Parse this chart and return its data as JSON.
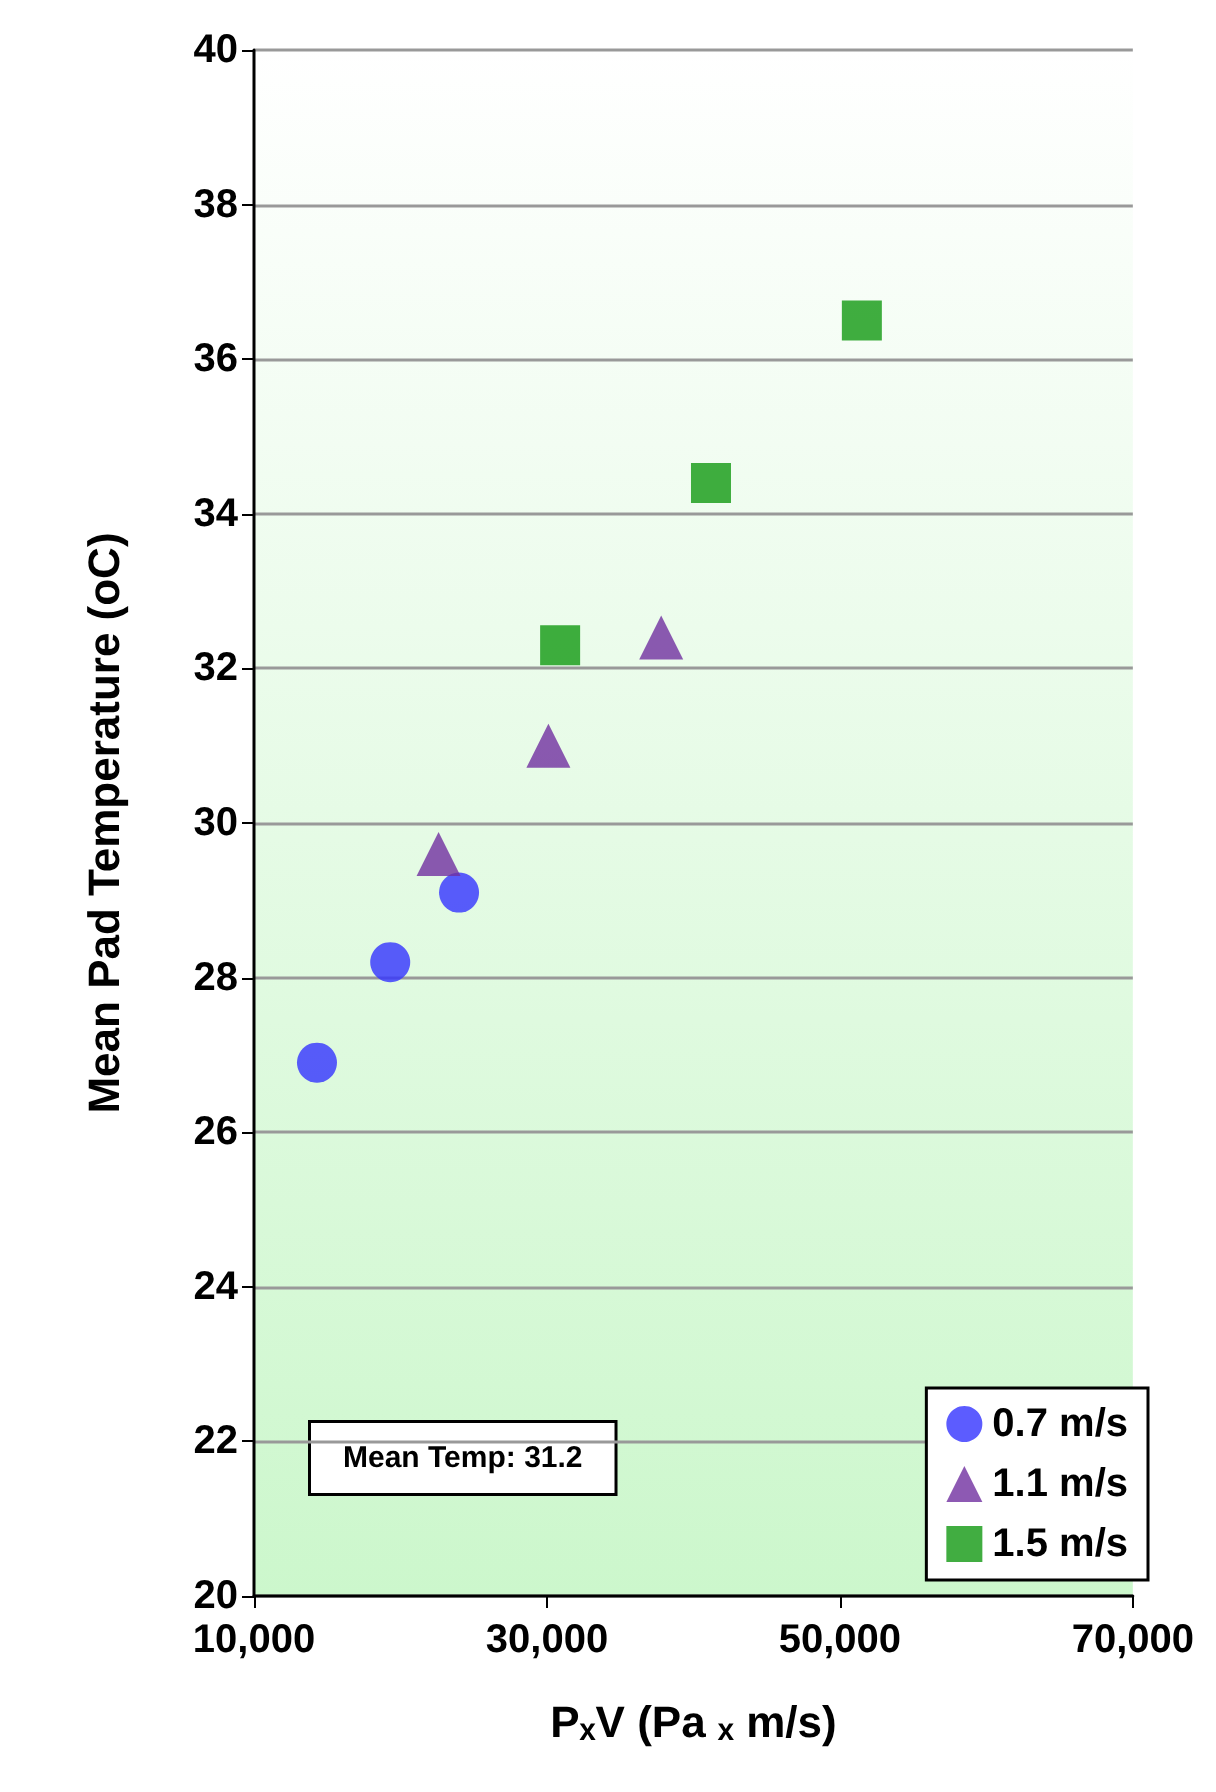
{
  "chart_data": {
    "type": "scatter",
    "xlabel": "PₓV (Pa ₓ m/s)",
    "ylabel": "Mean Pad Temperature (oC)",
    "xlim": [
      10000,
      70000
    ],
    "xticks": [
      {
        "value": 10000,
        "label": "10,000"
      },
      {
        "value": 30000,
        "label": "30,000"
      },
      {
        "value": 50000,
        "label": "50,000"
      },
      {
        "value": 70000,
        "label": "70,000"
      }
    ],
    "ylim": [
      20,
      40
    ],
    "yticks": [
      20,
      22,
      24,
      26,
      28,
      30,
      32,
      34,
      36,
      38,
      40
    ],
    "grid": "y",
    "legend": "bottom right",
    "annotations": [
      "Mean Temp: 31.2"
    ],
    "series": [
      {
        "name": "0.7 m/s",
        "color": "#3333ff",
        "marker": "circle",
        "x": [
          14300,
          19300,
          24000
        ],
        "values": [
          26.9,
          28.2,
          29.1
        ]
      },
      {
        "name": "1.1 m/s",
        "color": "#7030a0",
        "marker": "triangle",
        "x": [
          22600,
          30100,
          37800
        ],
        "values": [
          29.6,
          31.0,
          32.4
        ]
      },
      {
        "name": "1.5 m/s",
        "color": "#119911",
        "marker": "square",
        "x": [
          30900,
          41200,
          51500
        ],
        "values": [
          32.3,
          34.4,
          36.5
        ]
      }
    ]
  }
}
